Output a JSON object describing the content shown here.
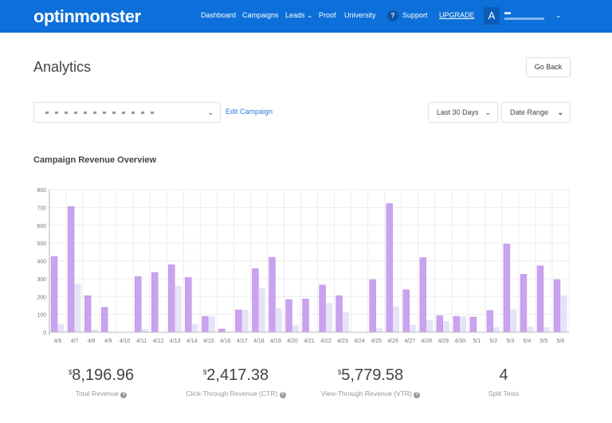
{
  "header": {
    "logo": "optinmonster",
    "nav": [
      "Dashboard",
      "Campaigns",
      "Leads",
      "Proof",
      "University"
    ],
    "support": "Support",
    "upgrade": "UPGRADE",
    "avatar": "A",
    "leads_chevron": "chevron-down-icon"
  },
  "page": {
    "title": "Analytics",
    "go_back": "Go Back"
  },
  "filters": {
    "campaign_value": "",
    "edit_campaign": "Edit Campaign",
    "period": "Last 30 Days",
    "date_range": "Date Range"
  },
  "section_title": "Campaign Revenue Overview",
  "chart_data": {
    "type": "bar",
    "categories": [
      "4/6",
      "4/7",
      "4/8",
      "4/9",
      "4/10",
      "4/11",
      "4/12",
      "4/13",
      "4/14",
      "4/15",
      "4/16",
      "4/17",
      "4/18",
      "4/19",
      "4/20",
      "4/21",
      "4/22",
      "4/23",
      "4/24",
      "4/25",
      "4/26",
      "4/27",
      "4/28",
      "4/29",
      "4/30",
      "5/1",
      "5/2",
      "5/3",
      "5/4",
      "5/5",
      "5/6"
    ],
    "series": [
      {
        "values": [
          425,
          705,
          205,
          140,
          0,
          312,
          335,
          378,
          308,
          88,
          18,
          125,
          357,
          420,
          183,
          187,
          265,
          205,
          0,
          295,
          722,
          238,
          418,
          92,
          88,
          85,
          122,
          495,
          325,
          372,
          295
        ],
        "color": "#c9a3ef"
      },
      {
        "values": [
          45,
          272,
          15,
          0,
          0,
          18,
          0,
          260,
          45,
          88,
          0,
          125,
          247,
          135,
          42,
          0,
          163,
          112,
          0,
          22,
          145,
          42,
          68,
          62,
          88,
          0,
          28,
          128,
          32,
          28,
          205
        ],
        "color": "#e5e3f7"
      }
    ],
    "ylim": [
      0,
      800
    ],
    "yticks": [
      0,
      100,
      200,
      300,
      400,
      500,
      600,
      700,
      800
    ],
    "grid": true
  },
  "stats": [
    {
      "currency": "$",
      "value": "8,196.96",
      "label": "Total Revenue",
      "help": true
    },
    {
      "currency": "$",
      "value": "2,417.38",
      "label": "Click-Through Revenue (CTR)",
      "help": true
    },
    {
      "currency": "$",
      "value": "5,779.58",
      "label": "View-Through Revenue (VTR)",
      "help": true
    },
    {
      "currency": "",
      "value": "4",
      "label": "Split Tests",
      "help": false
    }
  ]
}
